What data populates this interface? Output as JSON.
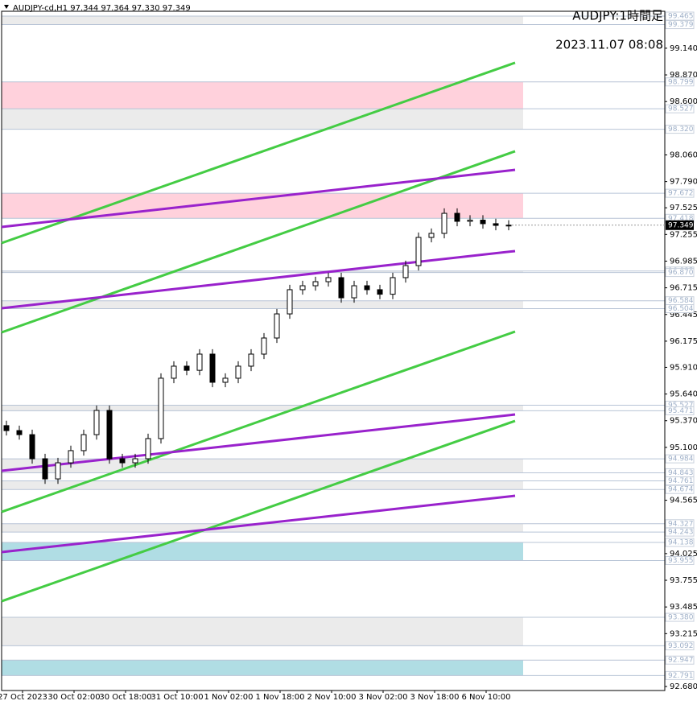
{
  "chart_data": {
    "type": "candlestick",
    "header": "AUDJPY-cd,H1  97.344 97.364 97.330 97.349",
    "title": "AUDJPY:1時間足",
    "subtitle": "2023.11.07 08:08",
    "time_labels": [
      "27 Oct 2023",
      "30 Oct 02:00",
      "30 Oct 18:00",
      "31 Oct 10:00",
      "1 Nov 02:00",
      "1 Nov 18:00",
      "2 Nov 10:00",
      "3 Nov 02:00",
      "3 Nov 18:00",
      "6 Nov 10:00"
    ],
    "ylim": [
      92.68,
      99.465
    ],
    "yticks": [
      {
        "value": 99.14,
        "label": "99.140"
      },
      {
        "value": 98.87,
        "label": "98.870"
      },
      {
        "value": 98.6,
        "label": "98.600"
      },
      {
        "value": 98.06,
        "label": "98.060"
      },
      {
        "value": 97.79,
        "label": "97.790"
      },
      97.525,
      97.255,
      96.985,
      96.715,
      96.445,
      96.175,
      {
        "value": 95.91,
        "label": "95.910"
      },
      {
        "value": 95.64,
        "label": "95.640"
      },
      {
        "value": 95.37,
        "label": "95.370"
      },
      {
        "value": 95.1,
        "label": "95.100"
      },
      94.565,
      94.025,
      93.755,
      93.485,
      93.215,
      {
        "value": 92.68,
        "label": "92.680"
      }
    ],
    "open": [
      95.32,
      95.27,
      95.229,
      94.985,
      94.781,
      94.944,
      95.067,
      95.229,
      95.474,
      94.985,
      94.944,
      94.985,
      95.189,
      95.8,
      95.922,
      95.88,
      96.044,
      95.759,
      95.8,
      95.922,
      96.044,
      96.207,
      96.451,
      96.696,
      96.736,
      96.777,
      96.818,
      96.614,
      96.736,
      96.696,
      96.65,
      96.818,
      96.94,
      97.225,
      97.266,
      97.469,
      97.388,
      97.4,
      97.364,
      97.347
    ],
    "high": [
      95.37,
      95.32,
      95.279,
      95.035,
      94.994,
      95.117,
      95.279,
      95.524,
      95.524,
      95.035,
      95.035,
      95.239,
      95.85,
      95.972,
      95.972,
      96.094,
      96.094,
      95.85,
      95.972,
      96.094,
      96.257,
      96.501,
      96.746,
      96.786,
      96.827,
      96.868,
      96.868,
      96.786,
      96.786,
      96.746,
      96.868,
      96.99,
      97.275,
      97.316,
      97.519,
      97.519,
      97.45,
      97.45,
      97.414,
      97.399
    ],
    "low": [
      95.22,
      95.179,
      94.935,
      94.731,
      94.731,
      94.894,
      95.017,
      95.179,
      94.935,
      94.894,
      94.894,
      94.935,
      95.139,
      95.75,
      95.83,
      95.83,
      95.709,
      95.709,
      95.75,
      95.872,
      95.994,
      96.157,
      96.401,
      96.646,
      96.686,
      96.727,
      96.564,
      96.564,
      96.646,
      96.6,
      96.6,
      96.768,
      96.89,
      97.175,
      97.216,
      97.338,
      97.338,
      97.314,
      97.297,
      97.297
    ],
    "close": [
      95.27,
      95.229,
      94.985,
      94.781,
      94.944,
      95.067,
      95.229,
      95.474,
      94.985,
      94.944,
      94.985,
      95.189,
      95.8,
      95.922,
      95.88,
      96.044,
      95.759,
      95.8,
      95.922,
      96.044,
      96.207,
      96.451,
      96.696,
      96.736,
      96.777,
      96.818,
      96.614,
      96.736,
      96.696,
      96.65,
      96.818,
      96.94,
      97.225,
      97.266,
      97.469,
      97.388,
      97.4,
      97.364,
      97.347,
      97.349
    ],
    "current_price": 97.349,
    "levels": [
      99.465,
      99.379,
      98.799,
      98.527,
      {
        "value": 98.32,
        "label": "98.320"
      },
      97.672,
      97.418,
      96.885,
      {
        "value": 96.87,
        "label": "96.870"
      },
      96.584,
      96.504,
      95.527,
      95.471,
      94.984,
      94.843,
      94.761,
      94.674,
      94.327,
      94.243,
      94.138,
      93.955,
      {
        "value": 93.38,
        "label": "93.380"
      },
      93.092,
      92.947,
      92.791
    ],
    "zones": [
      {
        "top": 99.465,
        "bottom": 99.379,
        "color": "#ebebeb"
      },
      {
        "top": 98.799,
        "bottom": 98.527,
        "color": "#ffd1dc"
      },
      {
        "top": 98.527,
        "bottom": 98.32,
        "color": "#ebebeb"
      },
      {
        "top": 97.672,
        "bottom": 97.418,
        "color": "#ffd1dc"
      },
      {
        "top": 96.885,
        "bottom": 96.87,
        "color": "#ebebeb"
      },
      {
        "top": 96.584,
        "bottom": 96.504,
        "color": "#ebebeb"
      },
      {
        "top": 95.527,
        "bottom": 95.471,
        "color": "#ebebeb"
      },
      {
        "top": 94.984,
        "bottom": 94.843,
        "color": "#ebebeb"
      },
      {
        "top": 94.761,
        "bottom": 94.674,
        "color": "#ebebeb"
      },
      {
        "top": 94.327,
        "bottom": 94.243,
        "color": "#ebebeb"
      },
      {
        "top": 94.138,
        "bottom": 93.955,
        "color": "#b0dde4"
      },
      {
        "top": 93.38,
        "bottom": 93.092,
        "color": "#ebebeb"
      },
      {
        "top": 92.947,
        "bottom": 92.791,
        "color": "#b0dde4"
      }
    ],
    "trendlines": [
      {
        "start": 97.168,
        "end": 98.993,
        "color": "#44cc44"
      },
      {
        "start": 96.264,
        "end": 98.097,
        "color": "#44cc44"
      },
      {
        "start": 94.447,
        "end": 96.272,
        "color": "#44cc44"
      },
      {
        "start": 93.543,
        "end": 95.368,
        "color": "#44cc44"
      },
      {
        "start": 97.331,
        "end": 97.909,
        "color": "#9922cc"
      },
      {
        "start": 96.508,
        "end": 97.087,
        "color": "#9922cc"
      },
      {
        "start": 94.863,
        "end": 95.433,
        "color": "#9922cc"
      },
      {
        "start": 94.04,
        "end": 94.61,
        "color": "#9922cc"
      }
    ]
  }
}
